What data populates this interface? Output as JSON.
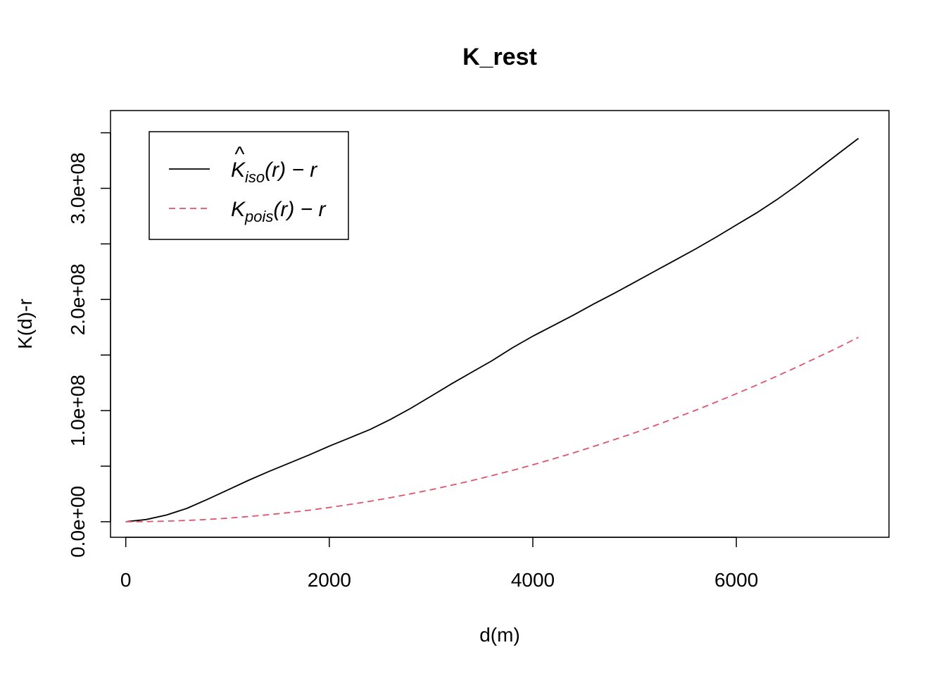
{
  "chart_data": {
    "type": "line",
    "title": "K_rest",
    "xlabel": "d(m)",
    "ylabel": "K(d)-r",
    "xlim": [
      -150,
      7500
    ],
    "ylim": [
      -14000000,
      370000000
    ],
    "x_ticks": [
      0,
      2000,
      4000,
      6000
    ],
    "x_tick_labels": [
      "0",
      "2000",
      "4000",
      "6000"
    ],
    "y_ticks": [
      0,
      50000000,
      100000000,
      150000000,
      200000000,
      250000000,
      300000000,
      350000000
    ],
    "y_tick_labels": [
      "0.0e+00",
      "",
      "1.0e+08",
      "",
      "2.0e+08",
      "",
      "3.0e+08",
      ""
    ],
    "grid": false,
    "legend_position": "top-left",
    "x": [
      0,
      200,
      400,
      600,
      800,
      1000,
      1200,
      1400,
      1600,
      1800,
      2000,
      2200,
      2400,
      2600,
      2800,
      3000,
      3200,
      3400,
      3600,
      3800,
      4000,
      4200,
      4400,
      4600,
      4800,
      5000,
      5200,
      5400,
      5600,
      5800,
      6000,
      6200,
      6400,
      6600,
      6800,
      7000,
      7200
    ],
    "series": [
      {
        "name": "K_iso(r) - r",
        "legend": {
          "main": "K",
          "hat": "^",
          "sub": "iso",
          "rest": "(r) − r"
        },
        "color": "#000000",
        "dash": "solid",
        "values": [
          0,
          2000000,
          6000000,
          12000000,
          20000000,
          28500000,
          37000000,
          45000000,
          52500000,
          60000000,
          68000000,
          75500000,
          83000000,
          92000000,
          102000000,
          113000000,
          124000000,
          134500000,
          145000000,
          156500000,
          167000000,
          176500000,
          186000000,
          196000000,
          205500000,
          215500000,
          225500000,
          235500000,
          245500000,
          256000000,
          267000000,
          278000000,
          290000000,
          303000000,
          317000000,
          331000000,
          345000000
        ]
      },
      {
        "name": "K_pois(r) - r",
        "legend": {
          "main": "K",
          "hat": "",
          "sub": "pois",
          "rest": "(r) − r"
        },
        "color": "#DF536B",
        "dash": "dashed",
        "values": [
          0,
          130000,
          500000,
          1150000,
          2050000,
          3200000,
          4600000,
          6250000,
          8200000,
          10350000,
          12800000,
          15500000,
          18400000,
          21600000,
          25100000,
          28800000,
          32800000,
          37000000,
          41500000,
          46200000,
          51200000,
          56500000,
          62000000,
          67800000,
          73800000,
          80000000,
          86500000,
          93300000,
          100300000,
          107600000,
          115200000,
          123000000,
          131100000,
          139400000,
          148000000,
          156800000,
          165900000
        ]
      }
    ]
  }
}
